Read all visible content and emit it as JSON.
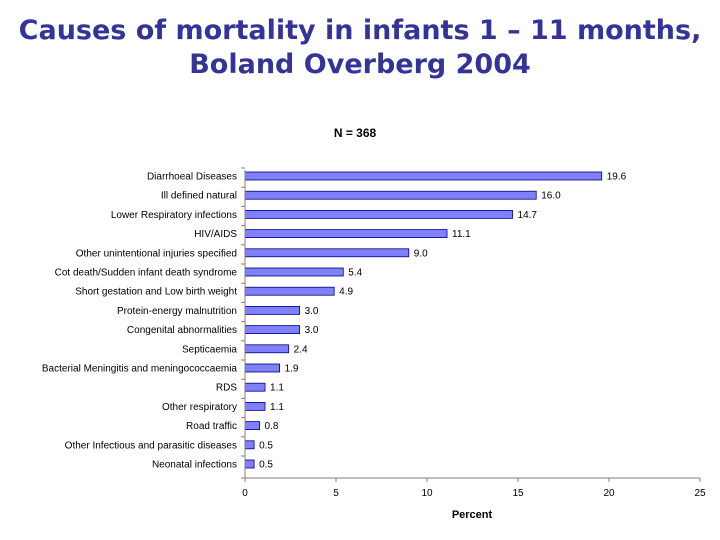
{
  "slide": {
    "title_line1": "Causes of mortality in infants 1 – 11 months,",
    "title_line2": "Boland Overberg 2004"
  },
  "chart_data": {
    "type": "bar",
    "orientation": "horizontal",
    "subtitle": "N = 368",
    "xlabel": "Percent",
    "ylabel": "",
    "xlim": [
      0,
      25
    ],
    "xticks": [
      0,
      5,
      10,
      15,
      20,
      25
    ],
    "bar_color": "#8080ff",
    "categories": [
      "Diarrhoeal Diseases",
      "Ill defined natural",
      "Lower Respiratory infections",
      "HIV/AIDS",
      "Other unintentional injuries specified",
      "Cot death/Sudden infant death syndrome",
      "Short gestation and Low birth weight",
      "Protein-energy malnutrition",
      "Congenital abnormalities",
      "Septicaemia",
      "Bacterial Meningitis and meningococcaemia",
      "RDS",
      "Other respiratory",
      "Road traffic",
      "Other Infectious and parasitic diseases",
      "Neonatal infections"
    ],
    "values": [
      19.6,
      16.0,
      14.7,
      11.1,
      9.0,
      5.4,
      4.9,
      3.0,
      3.0,
      2.4,
      1.9,
      1.1,
      1.1,
      0.8,
      0.5,
      0.5
    ],
    "value_labels": [
      "19.6",
      "16.0",
      "14.7",
      "11.1",
      "9.0",
      "5.4",
      "4.9",
      "3.0",
      "3.0",
      "2.4",
      "1.9",
      "1.1",
      "1.1",
      "0.8",
      "0.5",
      "0.5"
    ]
  }
}
